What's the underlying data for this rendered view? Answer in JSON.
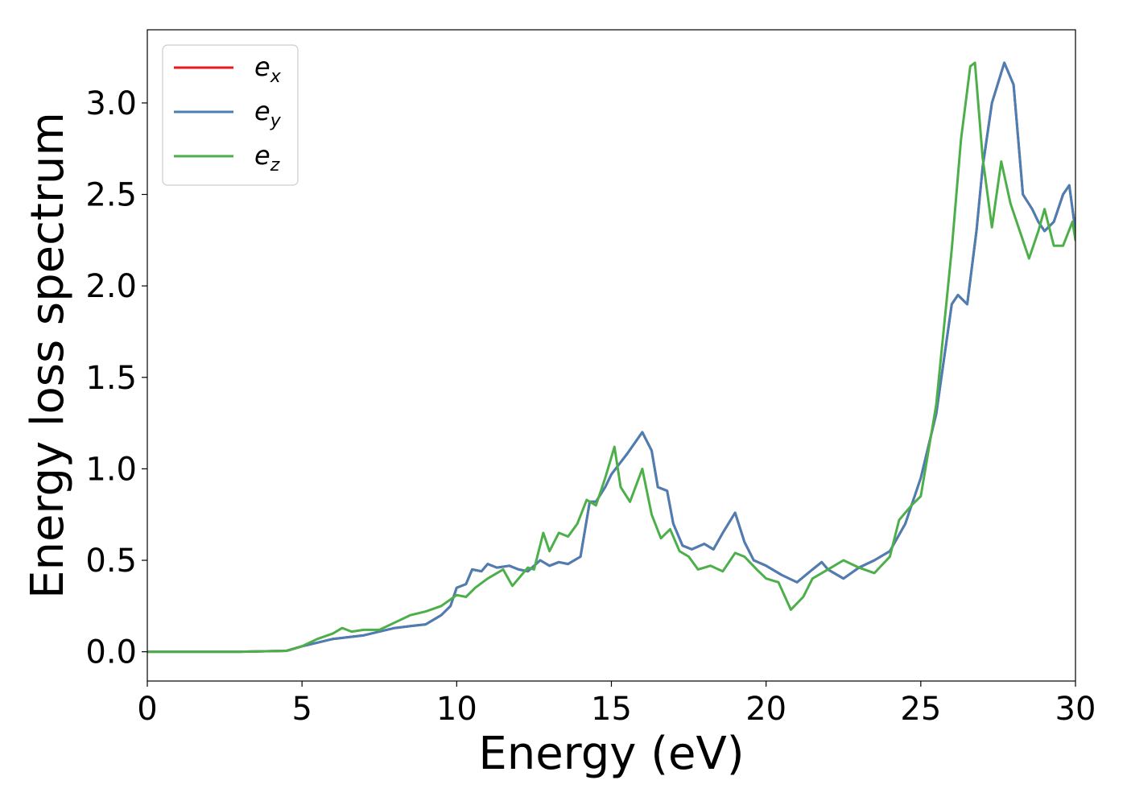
{
  "chart_data": {
    "type": "line",
    "xlabel": "Energy (eV)",
    "ylabel": "Energy loss spectrum",
    "xlim": [
      0,
      30
    ],
    "ylim": [
      -0.16,
      3.4
    ],
    "xticks": [
      0,
      5,
      10,
      15,
      20,
      25,
      30
    ],
    "xtick_labels": [
      "0",
      "5",
      "10",
      "15",
      "20",
      "25",
      "30"
    ],
    "yticks": [
      0.0,
      0.5,
      1.0,
      1.5,
      2.0,
      2.5,
      3.0
    ],
    "ytick_labels": [
      "0.0",
      "0.5",
      "1.0",
      "1.5",
      "2.0",
      "2.5",
      "3.0"
    ],
    "grid": false,
    "legend_position": "top-left",
    "series": [
      {
        "name": "e_x",
        "legend_main": "e",
        "legend_sub": "x",
        "color": "#e41a1c",
        "x": [
          0,
          3,
          4.5,
          5,
          5.5,
          6,
          6.5,
          7,
          7.5,
          8,
          8.5,
          9,
          9.5,
          9.8,
          10,
          10.3,
          10.5,
          10.8,
          11,
          11.3,
          11.7,
          12,
          12.3,
          12.7,
          13,
          13.3,
          13.6,
          14,
          14.3,
          14.5,
          14.8,
          15,
          15.5,
          16,
          16.3,
          16.5,
          16.8,
          17,
          17.3,
          17.6,
          18,
          18.3,
          18.6,
          19,
          19.3,
          19.6,
          20,
          20.5,
          21,
          21.5,
          21.8,
          22,
          22.5,
          23,
          23.5,
          24,
          24.5,
          25,
          25.5,
          26,
          26.2,
          26.5,
          26.8,
          27,
          27.3,
          27.7,
          28,
          28.3,
          28.6,
          28.8,
          29,
          29.3,
          29.6,
          29.8,
          30
        ],
        "y": [
          0,
          0,
          0.005,
          0.03,
          0.05,
          0.07,
          0.08,
          0.09,
          0.11,
          0.13,
          0.14,
          0.15,
          0.2,
          0.25,
          0.35,
          0.37,
          0.45,
          0.44,
          0.48,
          0.46,
          0.47,
          0.45,
          0.44,
          0.5,
          0.47,
          0.49,
          0.48,
          0.52,
          0.82,
          0.82,
          0.9,
          0.97,
          1.08,
          1.2,
          1.1,
          0.9,
          0.88,
          0.7,
          0.58,
          0.56,
          0.59,
          0.56,
          0.65,
          0.76,
          0.6,
          0.5,
          0.47,
          0.42,
          0.38,
          0.45,
          0.49,
          0.45,
          0.4,
          0.46,
          0.5,
          0.55,
          0.7,
          0.95,
          1.3,
          1.9,
          1.95,
          1.9,
          2.3,
          2.65,
          3.0,
          3.22,
          3.1,
          2.5,
          2.42,
          2.35,
          2.3,
          2.35,
          2.5,
          2.55,
          2.3
        ]
      },
      {
        "name": "e_y",
        "legend_main": "e",
        "legend_sub": "y",
        "color": "#4a7fb5",
        "x": [
          0,
          3,
          4.5,
          5,
          5.5,
          6,
          6.5,
          7,
          7.5,
          8,
          8.5,
          9,
          9.5,
          9.8,
          10,
          10.3,
          10.5,
          10.8,
          11,
          11.3,
          11.7,
          12,
          12.3,
          12.7,
          13,
          13.3,
          13.6,
          14,
          14.3,
          14.5,
          14.8,
          15,
          15.5,
          16,
          16.3,
          16.5,
          16.8,
          17,
          17.3,
          17.6,
          18,
          18.3,
          18.6,
          19,
          19.3,
          19.6,
          20,
          20.5,
          21,
          21.5,
          21.8,
          22,
          22.5,
          23,
          23.5,
          24,
          24.5,
          25,
          25.5,
          26,
          26.2,
          26.5,
          26.8,
          27,
          27.3,
          27.7,
          28,
          28.3,
          28.6,
          28.8,
          29,
          29.3,
          29.6,
          29.8,
          30
        ],
        "y": [
          0,
          0,
          0.005,
          0.03,
          0.05,
          0.07,
          0.08,
          0.09,
          0.11,
          0.13,
          0.14,
          0.15,
          0.2,
          0.25,
          0.35,
          0.37,
          0.45,
          0.44,
          0.48,
          0.46,
          0.47,
          0.45,
          0.44,
          0.5,
          0.47,
          0.49,
          0.48,
          0.52,
          0.82,
          0.82,
          0.9,
          0.97,
          1.08,
          1.2,
          1.1,
          0.9,
          0.88,
          0.7,
          0.58,
          0.56,
          0.59,
          0.56,
          0.65,
          0.76,
          0.6,
          0.5,
          0.47,
          0.42,
          0.38,
          0.45,
          0.49,
          0.45,
          0.4,
          0.46,
          0.5,
          0.55,
          0.7,
          0.95,
          1.3,
          1.9,
          1.95,
          1.9,
          2.3,
          2.65,
          3.0,
          3.22,
          3.1,
          2.5,
          2.42,
          2.35,
          2.3,
          2.35,
          2.5,
          2.55,
          2.3
        ]
      },
      {
        "name": "e_z",
        "legend_main": "e",
        "legend_sub": "z",
        "color": "#4daf4a",
        "x": [
          0,
          3,
          4.5,
          5,
          5.5,
          6,
          6.3,
          6.6,
          7,
          7.5,
          8,
          8.5,
          9,
          9.5,
          10,
          10.3,
          10.6,
          11,
          11.5,
          11.8,
          12,
          12.3,
          12.5,
          12.8,
          13,
          13.3,
          13.6,
          13.9,
          14.2,
          14.5,
          14.8,
          15.1,
          15.3,
          15.6,
          16,
          16.3,
          16.6,
          16.9,
          17.2,
          17.5,
          17.8,
          18.2,
          18.6,
          19,
          19.3,
          19.7,
          20,
          20.4,
          20.8,
          21.2,
          21.5,
          22,
          22.5,
          23,
          23.5,
          24,
          24.3,
          24.7,
          25,
          25.5,
          26,
          26.3,
          26.6,
          26.75,
          27,
          27.3,
          27.6,
          27.9,
          28.2,
          28.5,
          28.8,
          29,
          29.3,
          29.6,
          29.9,
          30
        ],
        "y": [
          0,
          0,
          0.005,
          0.03,
          0.07,
          0.1,
          0.13,
          0.11,
          0.12,
          0.12,
          0.16,
          0.2,
          0.22,
          0.25,
          0.31,
          0.3,
          0.35,
          0.4,
          0.45,
          0.36,
          0.4,
          0.46,
          0.45,
          0.65,
          0.55,
          0.65,
          0.63,
          0.7,
          0.83,
          0.8,
          0.95,
          1.12,
          0.9,
          0.82,
          1.0,
          0.75,
          0.62,
          0.67,
          0.55,
          0.52,
          0.45,
          0.47,
          0.44,
          0.54,
          0.52,
          0.45,
          0.4,
          0.38,
          0.23,
          0.3,
          0.4,
          0.45,
          0.5,
          0.46,
          0.43,
          0.52,
          0.72,
          0.8,
          0.85,
          1.35,
          2.2,
          2.8,
          3.2,
          3.22,
          2.7,
          2.32,
          2.68,
          2.45,
          2.3,
          2.15,
          2.3,
          2.42,
          2.22,
          2.22,
          2.35,
          2.25
        ]
      }
    ]
  }
}
